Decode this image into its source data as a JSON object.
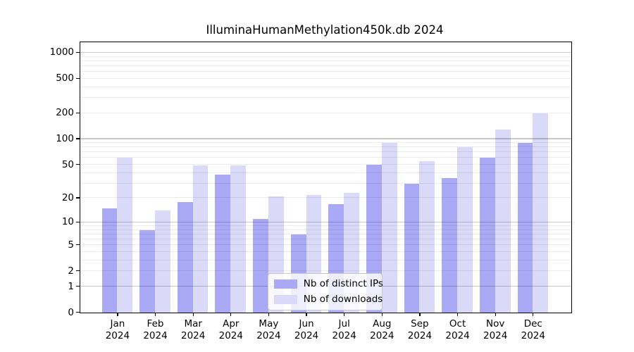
{
  "chart_data": {
    "type": "bar",
    "title": "IlluminaHumanMethylation450k.db 2024",
    "categories": [
      "Jan",
      "Feb",
      "Mar",
      "Apr",
      "May",
      "Jun",
      "Jul",
      "Aug",
      "Sep",
      "Oct",
      "Nov",
      "Dec"
    ],
    "year": "2024",
    "series": [
      {
        "name": "Nb of distinct IPs",
        "color": "#a9a9f6",
        "values": [
          15,
          8,
          18,
          38,
          11,
          7,
          17,
          50,
          30,
          35,
          60,
          90
        ]
      },
      {
        "name": "Nb of downloads",
        "color": "#dadaf8",
        "values": [
          60,
          14,
          49,
          49,
          21,
          22,
          23,
          90,
          55,
          80,
          130,
          200
        ]
      }
    ],
    "yscale": "log1p",
    "yticks": [
      0,
      1,
      2,
      5,
      10,
      20,
      50,
      100,
      200,
      500,
      1000
    ],
    "ylim": [
      0,
      1300
    ],
    "xlabel": "",
    "ylabel": "",
    "grid": {
      "major": [
        1,
        10,
        100,
        1000
      ],
      "minor": "log-decade-steps",
      "on": true
    },
    "legend": {
      "position": "lower-center-inside",
      "entries": [
        "Nb of distinct IPs",
        "Nb of downloads"
      ]
    },
    "colors": {
      "axis": "#000000",
      "grid_major": "#c9c9c9",
      "grid_minor": "#ececec",
      "background": "#ffffff"
    }
  }
}
